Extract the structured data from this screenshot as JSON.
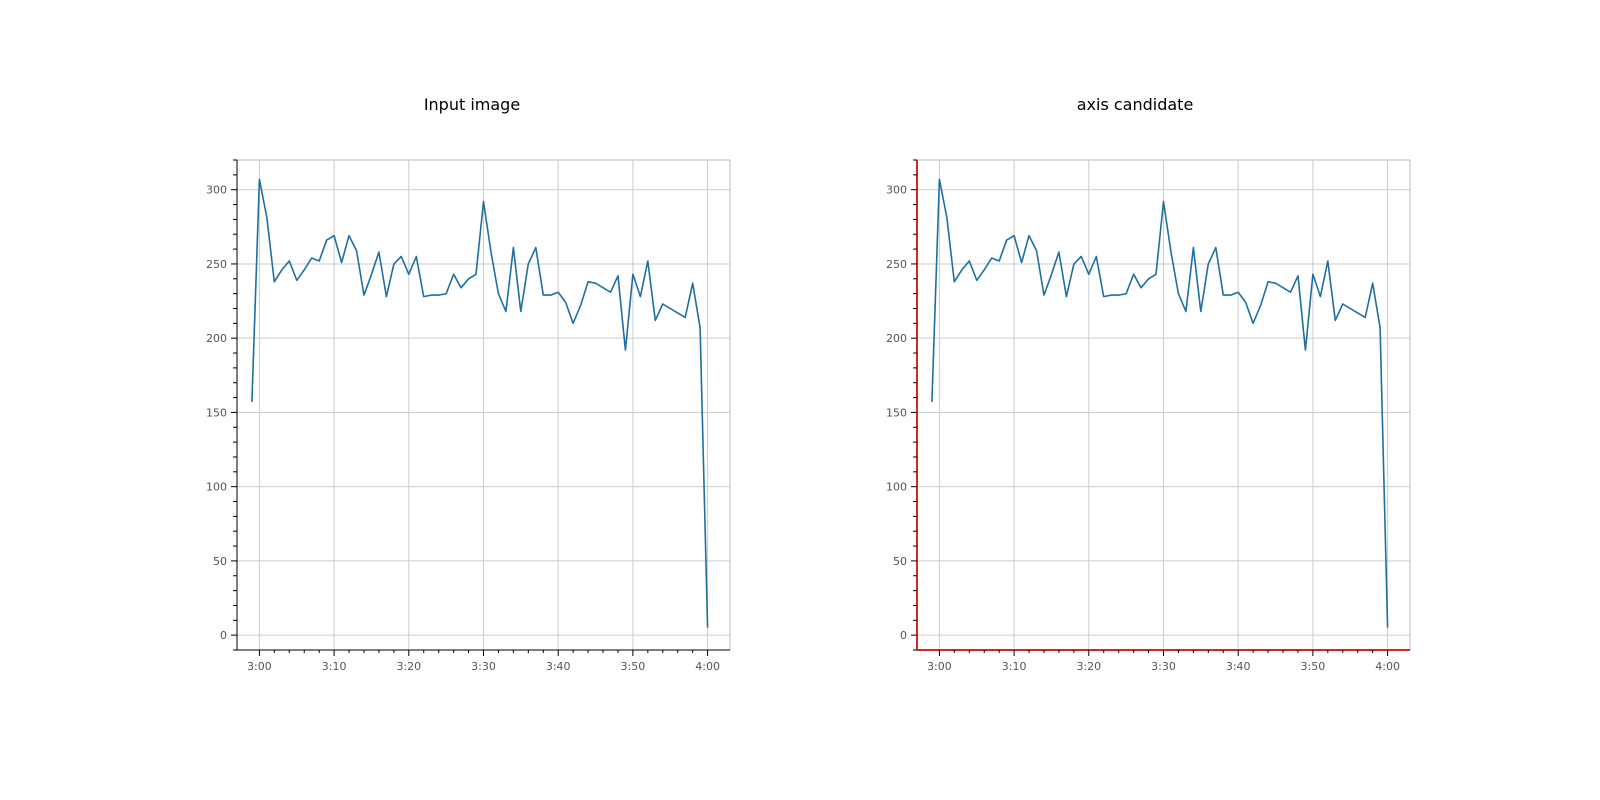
{
  "panels": [
    {
      "title": "Input image"
    },
    {
      "title": "axis candidate"
    }
  ],
  "colors": {
    "line": "#1f6fa0",
    "grid": "#cccccc",
    "frame": "#bbbbbb",
    "axis": "#000000",
    "highlight": "#d62728",
    "tick_text": "#555555"
  },
  "chart_data": [
    {
      "type": "line",
      "title": "Input image",
      "xlabel": "",
      "ylabel": "",
      "x_tick_labels": [
        "3:00",
        "3:10",
        "3:20",
        "3:30",
        "3:40",
        "3:50",
        "4:00"
      ],
      "y_tick_labels": [
        "0",
        "50",
        "100",
        "150",
        "200",
        "250",
        "300"
      ],
      "x_minutes": [
        -1,
        0,
        1,
        2,
        3,
        4,
        5,
        6,
        7,
        8,
        9,
        10,
        11,
        12,
        13,
        14,
        15,
        16,
        17,
        18,
        19,
        20,
        21,
        22,
        23,
        24,
        25,
        26,
        27,
        28,
        29,
        30,
        31,
        32,
        33,
        34,
        35,
        36,
        37,
        38,
        39,
        40,
        41,
        42,
        43,
        44,
        45,
        46,
        47,
        48,
        49,
        50,
        51,
        52,
        53,
        54,
        55,
        56,
        57,
        58,
        59,
        60
      ],
      "values": [
        157,
        307,
        281,
        238,
        246,
        252,
        239,
        246,
        254,
        252,
        266,
        269,
        251,
        269,
        259,
        229,
        243,
        258,
        228,
        250,
        255,
        243,
        255,
        228,
        229,
        229,
        230,
        243,
        234,
        240,
        243,
        292,
        258,
        230,
        218,
        261,
        218,
        250,
        261,
        229,
        229,
        231,
        224,
        210,
        222,
        238,
        237,
        234,
        231,
        242,
        192,
        243,
        228,
        252,
        212,
        223,
        220,
        217,
        214,
        237,
        207,
        5
      ],
      "ylim": [
        -10,
        320
      ],
      "xlim": [
        -3,
        63
      ],
      "grid": true
    },
    {
      "type": "line",
      "title": "axis candidate",
      "xlabel": "",
      "ylabel": "",
      "x_tick_labels": [
        "3:00",
        "3:10",
        "3:20",
        "3:30",
        "3:40",
        "3:50",
        "4:00"
      ],
      "y_tick_labels": [
        "0",
        "50",
        "100",
        "150",
        "200",
        "250",
        "300"
      ],
      "x_minutes": [
        -1,
        0,
        1,
        2,
        3,
        4,
        5,
        6,
        7,
        8,
        9,
        10,
        11,
        12,
        13,
        14,
        15,
        16,
        17,
        18,
        19,
        20,
        21,
        22,
        23,
        24,
        25,
        26,
        27,
        28,
        29,
        30,
        31,
        32,
        33,
        34,
        35,
        36,
        37,
        38,
        39,
        40,
        41,
        42,
        43,
        44,
        45,
        46,
        47,
        48,
        49,
        50,
        51,
        52,
        53,
        54,
        55,
        56,
        57,
        58,
        59,
        60
      ],
      "values": [
        157,
        307,
        281,
        238,
        246,
        252,
        239,
        246,
        254,
        252,
        266,
        269,
        251,
        269,
        259,
        229,
        243,
        258,
        228,
        250,
        255,
        243,
        255,
        228,
        229,
        229,
        230,
        243,
        234,
        240,
        243,
        292,
        258,
        230,
        218,
        261,
        218,
        250,
        261,
        229,
        229,
        231,
        224,
        210,
        222,
        238,
        237,
        234,
        231,
        242,
        192,
        243,
        228,
        252,
        212,
        223,
        220,
        217,
        214,
        237,
        207,
        5
      ],
      "ylim": [
        -10,
        320
      ],
      "xlim": [
        -3,
        63
      ],
      "grid": true,
      "highlight_axes": true
    }
  ]
}
